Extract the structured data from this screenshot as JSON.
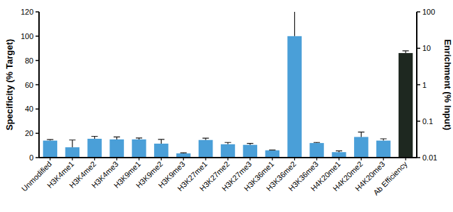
{
  "chart_data": {
    "type": "bar",
    "categories": [
      "Unmodified",
      "H3K4me1",
      "H3K4me2",
      "H3K4me3",
      "H3K9me1",
      "H3K9me2",
      "H3K9me3",
      "H3K27me1",
      "H3K27me2",
      "H3K27me3",
      "H3K36me1",
      "H3K36me2",
      "H3K36me3",
      "H4K20me1",
      "H4K20me2",
      "H4K20me3",
      "Ab Efficiency"
    ],
    "series": [
      {
        "color": "#4a9fd8",
        "values": [
          14,
          8.5,
          15.5,
          15,
          15,
          11.5,
          3.5,
          14.5,
          11,
          10.5,
          6,
          100,
          12,
          4.5,
          17,
          14,
          null
        ],
        "errors": [
          0.8,
          6,
          2,
          2,
          1.2,
          3.5,
          0.5,
          1.5,
          1.5,
          1.2,
          0.3,
          23,
          0.5,
          1,
          4,
          1.5,
          null
        ]
      },
      {
        "color": "#1e2820",
        "axis": "y2",
        "values": [
          null,
          null,
          null,
          null,
          null,
          null,
          null,
          null,
          null,
          null,
          null,
          null,
          null,
          null,
          null,
          null,
          7.4
        ],
        "errors": [
          null,
          null,
          null,
          null,
          null,
          null,
          null,
          null,
          null,
          null,
          null,
          null,
          null,
          null,
          null,
          null,
          1.1
        ]
      }
    ],
    "ylabel": "Specificity (% Target)",
    "y2label": "Enrichment (% Input)",
    "ylim": [
      0,
      120
    ],
    "yticks": [
      0,
      20,
      40,
      60,
      80,
      100,
      120
    ],
    "y2lim": [
      0.01,
      100
    ],
    "y2ticks": [
      0.01,
      0.1,
      1,
      10,
      100
    ],
    "log": "y2"
  }
}
